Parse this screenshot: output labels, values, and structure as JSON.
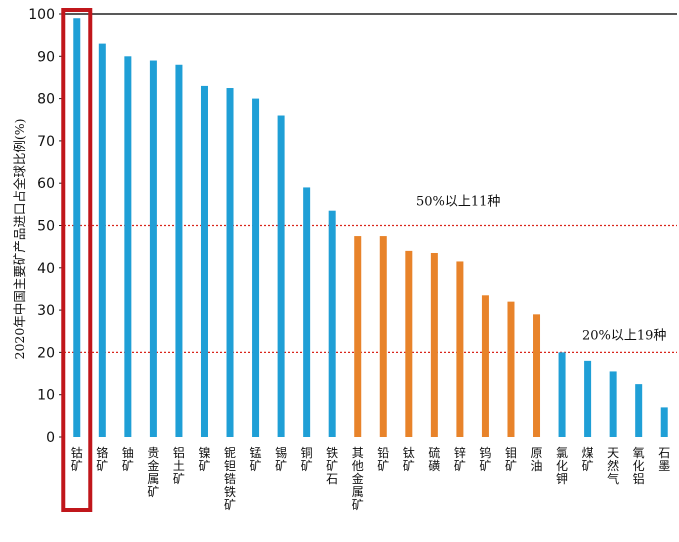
{
  "chart_data": {
    "type": "bar",
    "ylabel": "2020年中国主要矿产品进口占全球比例(%)",
    "ylim": [
      0,
      100
    ],
    "yticks": [
      0,
      10,
      20,
      30,
      40,
      50,
      60,
      70,
      80,
      90,
      100
    ],
    "categories": [
      "钴矿",
      "铬矿",
      "铀矿",
      "贵金属矿",
      "铝土矿",
      "镍矿",
      "铌钽锆铁矿",
      "锰矿",
      "锡矿",
      "铜矿",
      "铁矿石",
      "其他金属矿",
      "铅矿",
      "钛矿",
      "硫磺",
      "锌矿",
      "钨矿",
      "钼矿",
      "原油",
      "氯化钾",
      "煤矿",
      "天然气",
      "氧化铝",
      "石墨"
    ],
    "values": [
      99,
      93,
      90,
      89,
      88,
      83,
      82.5,
      80,
      76,
      59,
      53.5,
      47.5,
      47.5,
      44,
      43.5,
      41.5,
      33.5,
      32,
      29,
      20,
      18,
      15.5,
      12.5,
      7
    ],
    "group": [
      "blue",
      "blue",
      "blue",
      "blue",
      "blue",
      "blue",
      "blue",
      "blue",
      "blue",
      "blue",
      "blue",
      "orange",
      "orange",
      "orange",
      "orange",
      "orange",
      "orange",
      "orange",
      "orange",
      "blue",
      "blue",
      "blue",
      "blue",
      "blue"
    ],
    "colors": {
      "blue": "#1f9fd6",
      "orange": "#e8832a",
      "reference": "#d9261c",
      "highlight": "#c0161b"
    },
    "reference_lines": [
      {
        "value": 50,
        "label": "50%以上11种"
      },
      {
        "value": 20,
        "label": "20%以上19种"
      }
    ],
    "highlight_category": "钴矿",
    "grid": false
  }
}
